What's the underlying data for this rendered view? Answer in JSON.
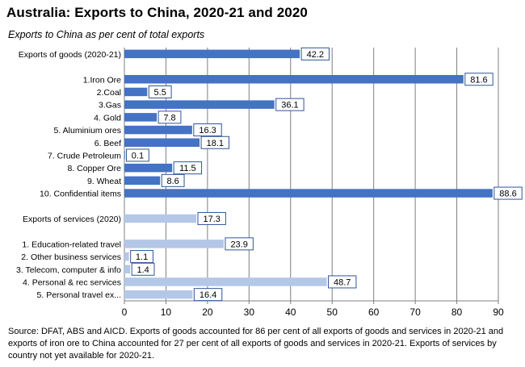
{
  "title": "Australia:  Exports  to China,  2020-21 and 2020",
  "subtitle": "Exports to China as per cent of total exports",
  "source": "Source: DFAT, ABS and AICD.  Exports of goods accounted for 86 per cent of all exports of goods and services in 2020-21 and exports of iron ore to China accounted for 27 per cent of all exports of goods and services in 2020-21. Exports of services by country not yet available for 2020-21.",
  "colors": {
    "goods": "#4472C4",
    "services": "#B4C7E7",
    "grid": "#7F7F7F",
    "label_border": "#2F5597"
  },
  "chart_data": {
    "type": "bar",
    "orientation": "horizontal",
    "xlim": [
      0,
      90
    ],
    "xticks": [
      0,
      10,
      20,
      30,
      40,
      50,
      60,
      70,
      80,
      90
    ],
    "grid": "vertical",
    "categories": [
      "Exports of goods (2020-21)",
      "",
      "1.Iron Ore",
      "2.Coal",
      "3.Gas",
      "4. Gold",
      "5. Aluminium ores",
      "6. Beef",
      "7. Crude Petroleum",
      "8. Copper Ore",
      "9. Wheat",
      "10. Confidential items",
      "",
      "Exports of services (2020)",
      "",
      "1. Education-related travel",
      "2. Other business services",
      "3. Telecom, computer & info",
      "4. Personal & rec services",
      "5. Personal travel ex..."
    ],
    "values": [
      42.2,
      null,
      81.6,
      5.5,
      36.1,
      7.8,
      16.3,
      18.1,
      0.1,
      11.5,
      8.6,
      88.6,
      null,
      17.3,
      null,
      23.9,
      1.1,
      1.4,
      48.7,
      16.4
    ],
    "value_labels": [
      "42.2",
      "",
      "81.6",
      "5.5",
      "36.1",
      "7.8",
      "16.3",
      "18.1",
      "0.1",
      "11.5",
      "8.6",
      "88.6",
      "",
      "17.3",
      "",
      "23.9",
      "1.1",
      "1.4",
      "48.7",
      "16.4"
    ],
    "groups": [
      "goods",
      "",
      "goods",
      "goods",
      "goods",
      "goods",
      "goods",
      "goods",
      "goods",
      "goods",
      "goods",
      "goods",
      "",
      "services",
      "",
      "services",
      "services",
      "services",
      "services",
      "services"
    ]
  }
}
